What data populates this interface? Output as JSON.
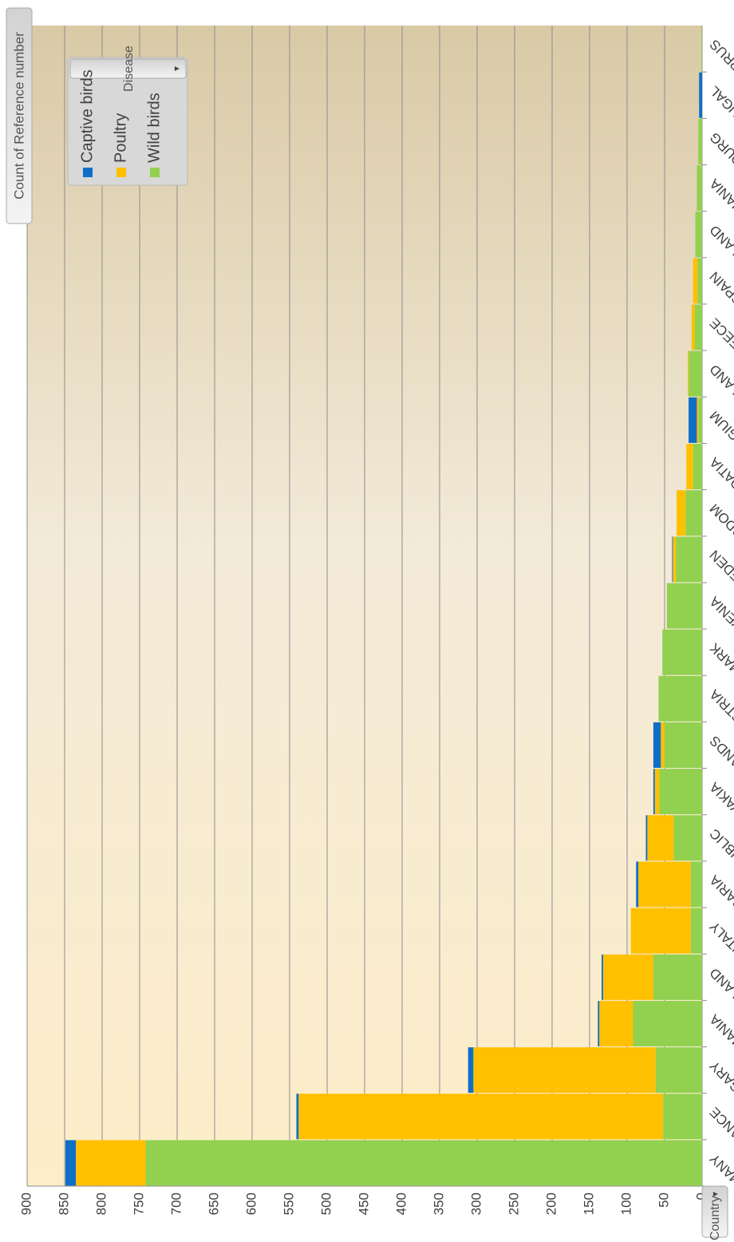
{
  "value_field": "Count of Reference number",
  "axis_field": "Country",
  "legend_field": "Disease",
  "colors": {
    "Captive birds": "#0f6fc6",
    "Poultry": "#ffc000",
    "Wild birds": "#92d050",
    "gridline": "#8c8c8c",
    "text": "#404040"
  },
  "chart_data": {
    "type": "bar",
    "stacked": true,
    "orientation": "vertical",
    "categories": [
      "GERMANY",
      "FRANCE",
      "HUNGARY",
      "ROMANIA",
      "POLAND",
      "ITALY",
      "BULGARIA",
      "CZECH REPUBLIC",
      "SLOVAKIA",
      "NETHERLANDS",
      "AUSTRIA",
      "DENMARK",
      "SLOVENIA",
      "SWEDEN",
      "UNITED KINGDOM",
      "CROATIA",
      "BELGIUM",
      "FINLAND",
      "GREECE",
      "SPAIN",
      "IRELAND",
      "LITHUANIA",
      "LUXEMBOURG",
      "PORTUGAL",
      "CYPRUS"
    ],
    "series": [
      {
        "name": "Wild birds",
        "values": [
          742,
          52,
          62,
          92,
          65,
          15,
          15,
          38,
          57,
          50,
          58,
          53,
          47,
          35,
          22,
          12,
          5,
          18,
          10,
          6,
          9,
          7,
          5,
          0,
          1
        ]
      },
      {
        "name": "Poultry",
        "values": [
          93,
          486,
          243,
          45,
          67,
          80,
          70,
          35,
          6,
          5,
          0,
          0,
          0,
          4,
          12,
          9,
          2,
          1,
          4,
          6,
          0,
          0,
          0,
          0,
          0
        ]
      },
      {
        "name": "Captive birds",
        "values": [
          14,
          3,
          7,
          2,
          2,
          0,
          3,
          2,
          2,
          10,
          0,
          0,
          0,
          1,
          0,
          0,
          11,
          0,
          0,
          0,
          0,
          0,
          0,
          4,
          0
        ]
      }
    ],
    "xlabel": "",
    "ylabel": "",
    "ylim": [
      0,
      900
    ],
    "ticks": [
      "900",
      "850",
      "800",
      "750",
      "700",
      "650",
      "600",
      "550",
      "500",
      "450",
      "400",
      "350",
      "300",
      "250",
      "200",
      "150",
      "100",
      "50",
      "0"
    ],
    "grid": true,
    "legend_position": "top-right"
  }
}
